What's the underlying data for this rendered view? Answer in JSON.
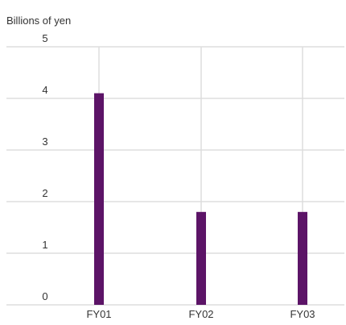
{
  "chart_data": {
    "type": "bar",
    "ylabel": "Billions of yen",
    "categories": [
      "FY01",
      "FY02",
      "FY03"
    ],
    "series": [
      {
        "values": [
          4.1,
          1.8,
          1.8
        ],
        "color": "#5c1467"
      }
    ],
    "ylim": [
      0,
      5
    ],
    "yticks": [
      0,
      1,
      2,
      3,
      4,
      5
    ],
    "ytick_labels": [
      "0",
      "1",
      "2",
      "3",
      "4",
      "5"
    ],
    "grid": true,
    "legend": "none"
  },
  "colors": {
    "bar": "#5c1467",
    "grid": "#dddddd",
    "text": "#333333"
  }
}
